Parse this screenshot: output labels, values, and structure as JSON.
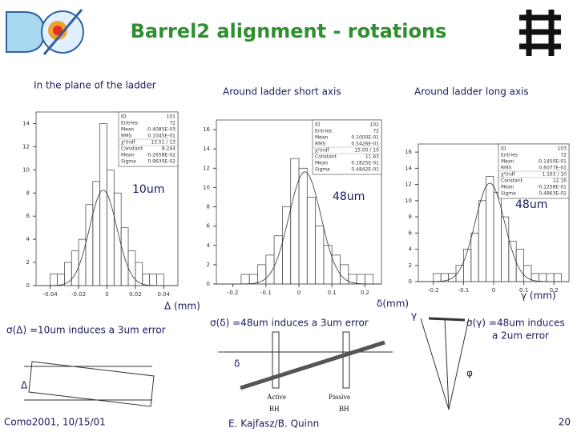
{
  "title": "Barrel2 alignment - rotations",
  "headers": [
    "In the plane of the ladder",
    "Around ladder short axis",
    "Around ladder long axis"
  ],
  "annotations": [
    "10um",
    "48um",
    "48um"
  ],
  "axis_labels": [
    "Δ (mm)",
    "δ(mm)",
    "γ (mm)"
  ],
  "notes": {
    "delta": "σ(Δ) =10um induces a 3um error",
    "small_delta": "σ(δ) =48um induces a 3um error",
    "gamma": [
      "σ(γ) =48um induces",
      "a 2um error"
    ]
  },
  "diagram_labels": {
    "delta_big": "Δ",
    "delta_small": "δ",
    "gamma": "γ",
    "phi": "φ",
    "active": [
      "Active",
      "BH"
    ],
    "passive": [
      "Passive",
      "BH"
    ]
  },
  "footer": {
    "left": "Como2001, 10/15/01",
    "center": "E. Kajfasz/B. Quinn",
    "right": "20"
  },
  "chart_data": [
    {
      "type": "histogram",
      "color": "#555555",
      "fit_color": "#333333",
      "bins": [
        -0.05,
        -0.045,
        -0.04,
        -0.035,
        -0.03,
        -0.025,
        -0.02,
        -0.015,
        -0.01,
        -0.005,
        0,
        0.005,
        0.01,
        0.015,
        0.02,
        0.025,
        0.03,
        0.035,
        0.04,
        0.045,
        0.05
      ],
      "values": [
        0,
        0,
        1,
        1,
        2,
        3,
        4,
        7,
        9,
        14,
        10,
        8,
        5,
        3,
        2,
        1,
        1,
        1,
        0,
        0
      ],
      "xlim": [
        -0.05,
        0.05
      ],
      "xticks": [
        -0.04,
        -0.02,
        0,
        0.02,
        0.04
      ],
      "ylim": [
        0,
        15
      ],
      "yticks": [
        0,
        2,
        4,
        6,
        8,
        10,
        12,
        14
      ],
      "stats": [
        [
          "ID",
          "101"
        ],
        [
          "Entries",
          "72"
        ],
        [
          "Mean",
          "-0.4085E-03"
        ],
        [
          "RMS",
          "0.1045E-01"
        ],
        [
          "χ²/ndf",
          "13.51 / 13"
        ],
        [
          "Constant",
          "8.244"
        ],
        [
          "Mean",
          "-0.2658E-02"
        ],
        [
          "Sigma",
          "0.9630E-02"
        ]
      ]
    },
    {
      "type": "histogram",
      "color": "#555555",
      "fit_color": "#333333",
      "bins": [
        -0.25,
        -0.225,
        -0.2,
        -0.175,
        -0.15,
        -0.125,
        -0.1,
        -0.075,
        -0.05,
        -0.025,
        0,
        0.025,
        0.05,
        0.075,
        0.1,
        0.125,
        0.15,
        0.175,
        0.2,
        0.225,
        0.25
      ],
      "values": [
        0,
        0,
        0,
        1,
        1,
        2,
        3,
        5,
        8,
        13,
        12,
        9,
        6,
        4,
        3,
        2,
        1,
        1,
        1,
        0
      ],
      "xlim": [
        -0.25,
        0.25
      ],
      "xticks": [
        -0.2,
        -0.1,
        0,
        0.1,
        0.2
      ],
      "ylim": [
        0,
        17
      ],
      "yticks": [
        0,
        2,
        4,
        6,
        8,
        10,
        12,
        14,
        16
      ],
      "stats": [
        [
          "ID",
          "102"
        ],
        [
          "Entries",
          "72"
        ],
        [
          "Mean",
          "0.1000E-01"
        ],
        [
          "RMS",
          "0.5426E-01"
        ],
        [
          "χ²/ndf",
          "15.00 / 10"
        ],
        [
          "Constant",
          "11.63"
        ],
        [
          "Mean",
          "0.1825E-01"
        ],
        [
          "Sigma",
          "0.4842E-01"
        ]
      ]
    },
    {
      "type": "histogram",
      "color": "#555555",
      "fit_color": "#333333",
      "bins": [
        -0.25,
        -0.225,
        -0.2,
        -0.175,
        -0.15,
        -0.125,
        -0.1,
        -0.075,
        -0.05,
        -0.025,
        0,
        0.025,
        0.05,
        0.075,
        0.1,
        0.125,
        0.15,
        0.175,
        0.2,
        0.225,
        0.25
      ],
      "values": [
        0,
        0,
        1,
        1,
        1,
        2,
        4,
        6,
        10,
        13,
        11,
        8,
        5,
        4,
        2,
        1,
        1,
        1,
        1,
        0
      ],
      "xlim": [
        -0.25,
        0.25
      ],
      "xticks": [
        -0.2,
        -0.1,
        0,
        0.1,
        0.2
      ],
      "ylim": [
        0,
        17
      ],
      "yticks": [
        0,
        2,
        4,
        6,
        8,
        10,
        12,
        14,
        16
      ],
      "stats": [
        [
          "ID",
          "103"
        ],
        [
          "Entries",
          "72"
        ],
        [
          "Mean",
          "-0.1450E-01"
        ],
        [
          "RMS",
          "0.6077E-01"
        ],
        [
          "χ²/ndf",
          "1.163 / 10"
        ],
        [
          "Constant",
          "12.16"
        ],
        [
          "Mean",
          "-0.1258E-01"
        ],
        [
          "Sigma",
          "0.4863E-01"
        ]
      ]
    }
  ]
}
